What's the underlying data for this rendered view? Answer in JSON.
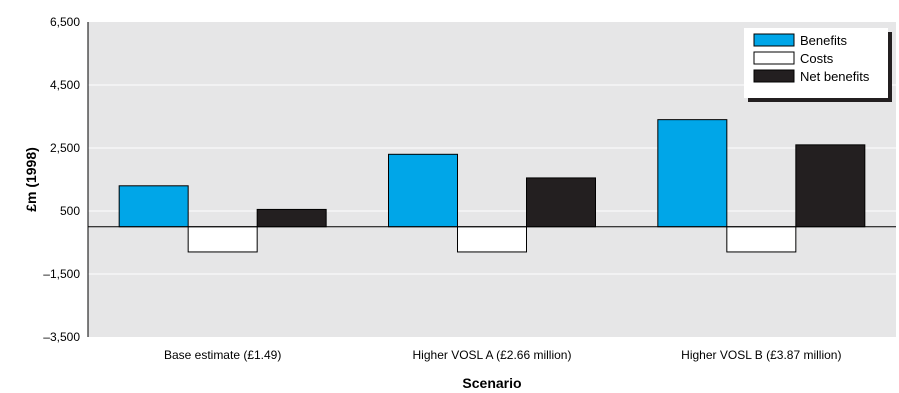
{
  "chart_data": {
    "type": "bar",
    "title": "",
    "xlabel": "Scenario",
    "ylabel": "£m (1998)",
    "ylim": [
      -3500,
      6500
    ],
    "yticks": [
      6500,
      4500,
      2500,
      500,
      -1500,
      -3500
    ],
    "ytick_labels": [
      "6,500",
      "4,500",
      "2,500",
      "500",
      "–1,500",
      "–3,500"
    ],
    "grid": true,
    "legend_position": "top-right",
    "categories": [
      "Base estimate (£1.49)",
      "Higher VOSL A (£2.66 million)",
      "Higher VOSL B (£3.87 million)"
    ],
    "series": [
      {
        "name": "Benefits",
        "values": [
          1300,
          2300,
          3400
        ],
        "color": "#00a6e8"
      },
      {
        "name": "Costs",
        "values": [
          -800,
          -800,
          -800
        ],
        "color": "#ffffff"
      },
      {
        "name": "Net benefits",
        "values": [
          550,
          1550,
          2600
        ],
        "color": "#231f20"
      }
    ],
    "background_color": "#e6e6e7"
  }
}
